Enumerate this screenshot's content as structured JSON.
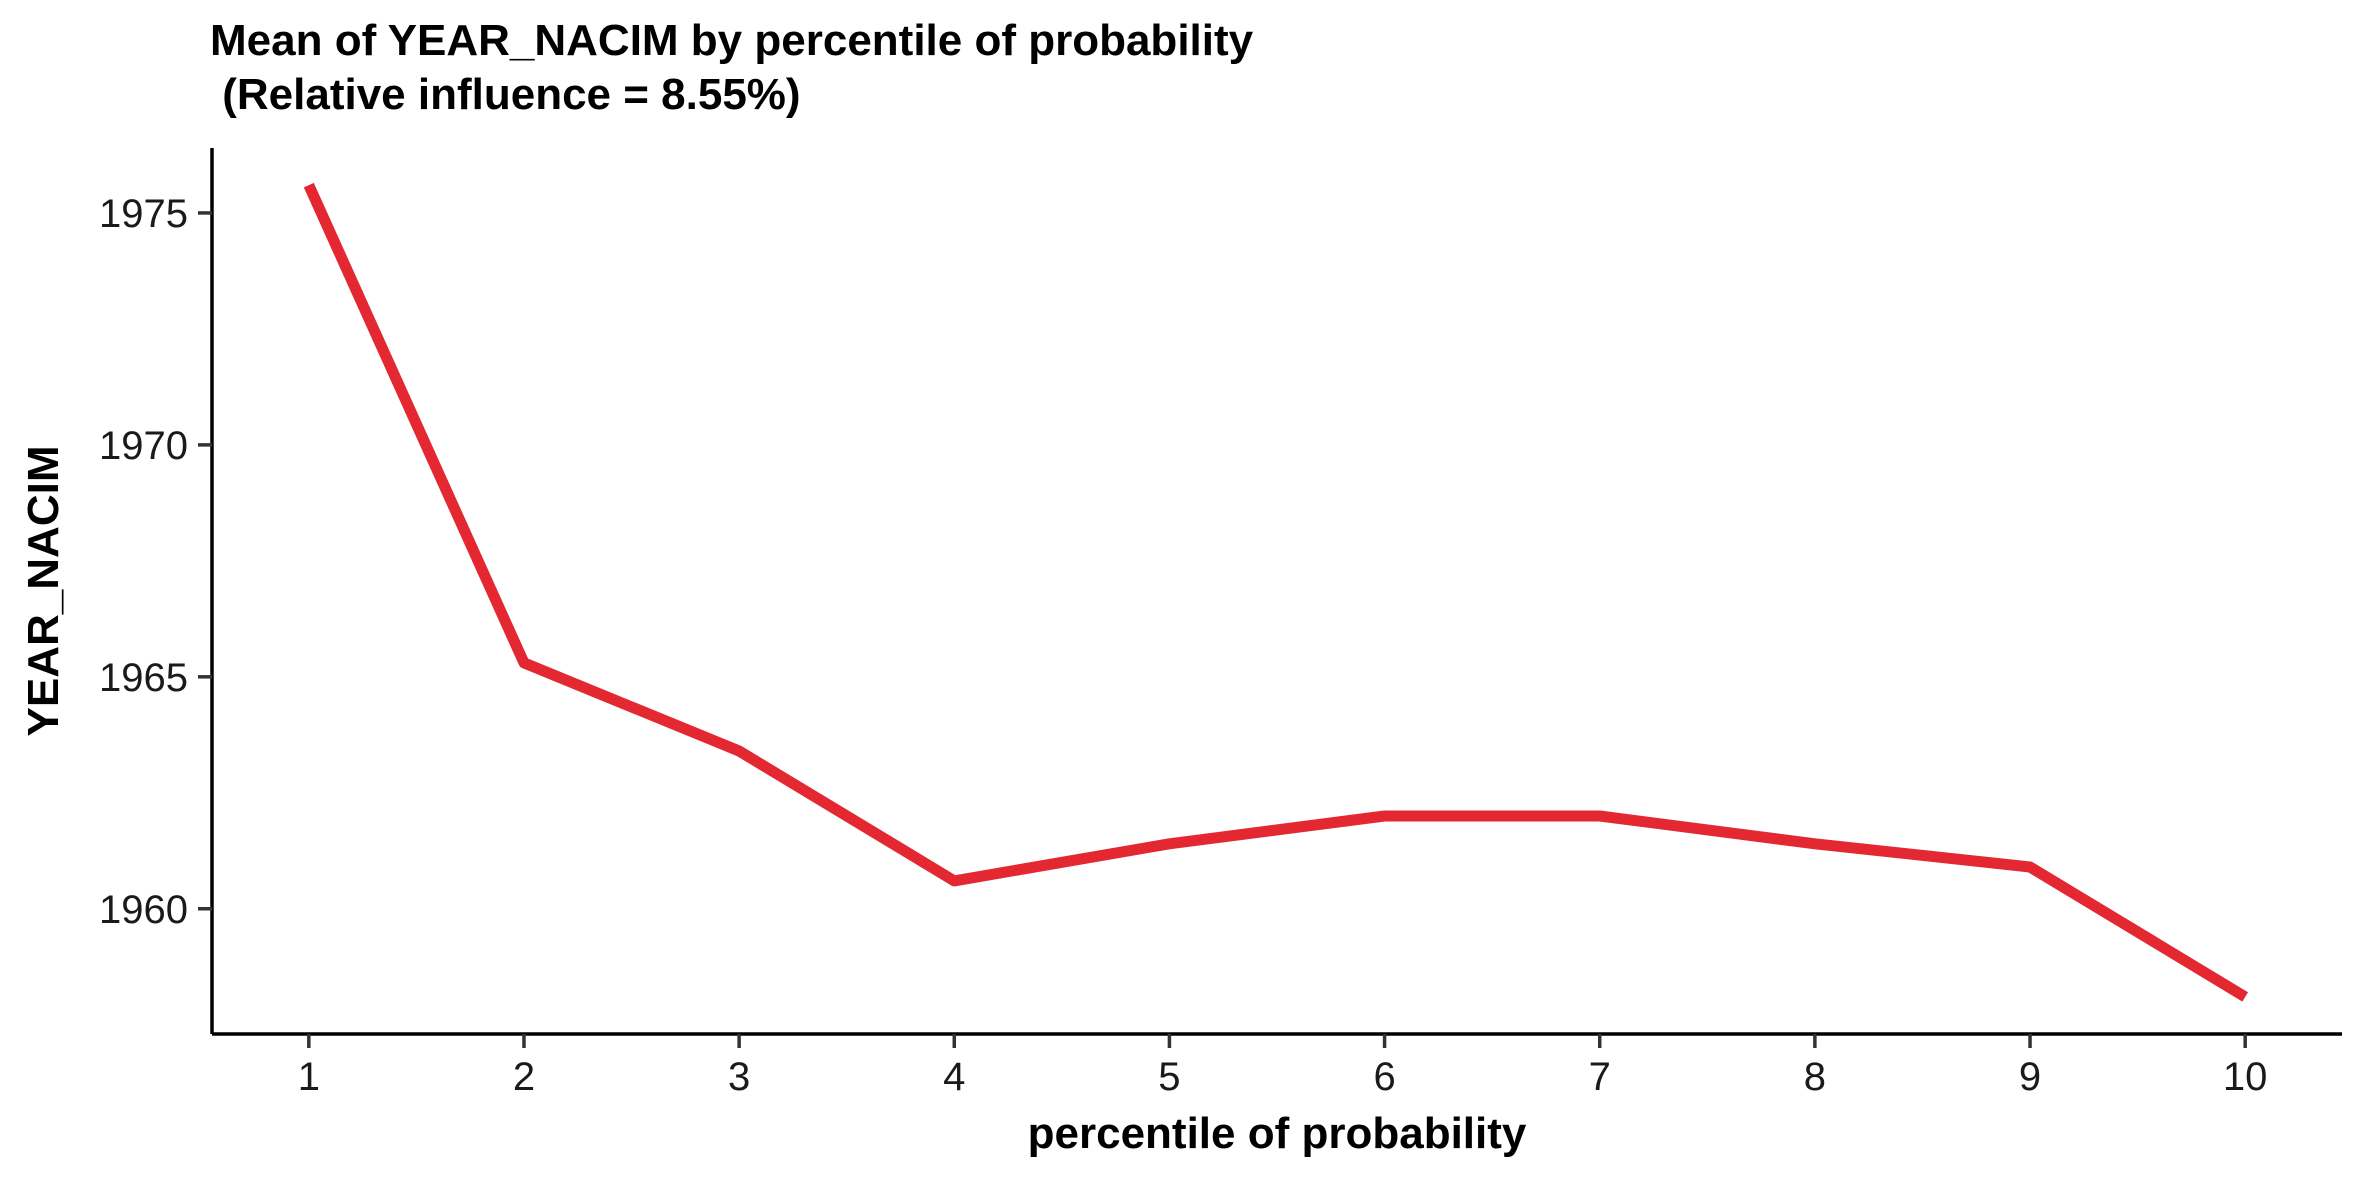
{
  "chart_data": {
    "type": "line",
    "title": "Mean of YEAR_NACIM by percentile of probability",
    "subtitle": " (Relative influence = 8.55%)",
    "xlabel": "percentile of probability",
    "ylabel": "YEAR_NACIM",
    "x": [
      1,
      2,
      3,
      4,
      5,
      6,
      7,
      8,
      9,
      10
    ],
    "x_ticks": [
      "1",
      "2",
      "3",
      "4",
      "5",
      "6",
      "7",
      "8",
      "9",
      "10"
    ],
    "y_ticks": [
      "1960",
      "1965",
      "1970",
      "1975"
    ],
    "xlim": [
      0.55,
      10.45
    ],
    "ylim": [
      1957.3,
      1976.4
    ],
    "grid": false,
    "series": [
      {
        "values": [
          1975.6,
          1965.3,
          1963.4,
          1960.6,
          1961.4,
          1962.0,
          1962.0,
          1961.4,
          1960.9,
          1958.1
        ],
        "color": "#E32832"
      }
    ]
  }
}
